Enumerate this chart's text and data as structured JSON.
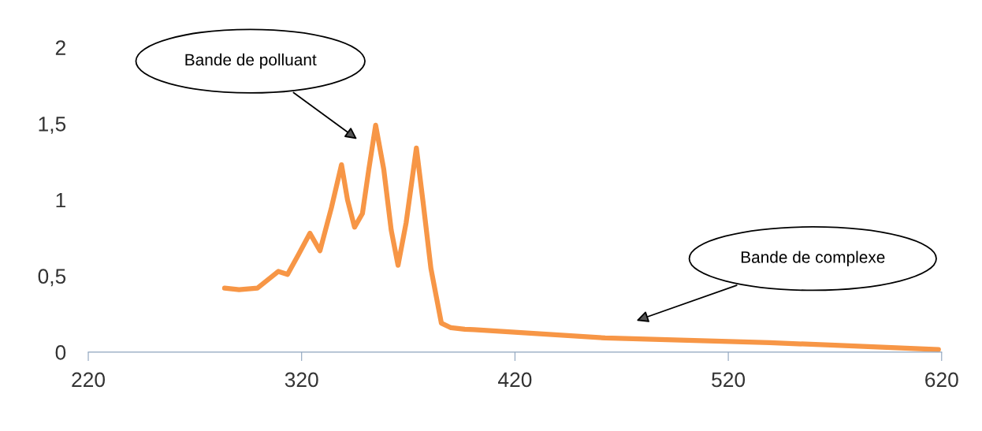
{
  "chart_data": {
    "type": "line",
    "x": [
      283.9,
      290.7,
      299.3,
      309.1,
      313.4,
      318.5,
      323.9,
      328.6,
      334,
      338.7,
      341.5,
      344.8,
      348.5,
      351.5,
      354.7,
      358.5,
      362,
      365.2,
      369,
      373.8,
      376.8,
      380.6,
      385.5,
      390,
      396.5,
      400.9,
      462.3,
      539.4,
      570.1,
      618.5
    ],
    "series": [
      {
        "color": "#f79646",
        "values": [
          0.42,
          0.41,
          0.42,
          0.53,
          0.51,
          0.64,
          0.78,
          0.665,
          0.95,
          1.23,
          1.0,
          0.82,
          0.91,
          1.2,
          1.49,
          1.2,
          0.8,
          0.57,
          0.85,
          1.34,
          1.0,
          0.55,
          0.19,
          0.16,
          0.15,
          0.148,
          0.093,
          0.062,
          0.045,
          0.017
        ]
      }
    ],
    "xlim": [
      220,
      620
    ],
    "xticks": [
      220,
      320,
      420,
      520,
      620
    ],
    "ylim": [
      0,
      2
    ],
    "yticks": [
      0,
      {
        "value": 0.5,
        "label": "0,5"
      },
      1,
      {
        "value": 1.5,
        "label": "1,5"
      },
      2
    ],
    "annotations": [
      "Bande de polluant",
      "Bande de complexe"
    ],
    "grid": false,
    "legend": false,
    "marker": "none",
    "line_style": "solid"
  }
}
